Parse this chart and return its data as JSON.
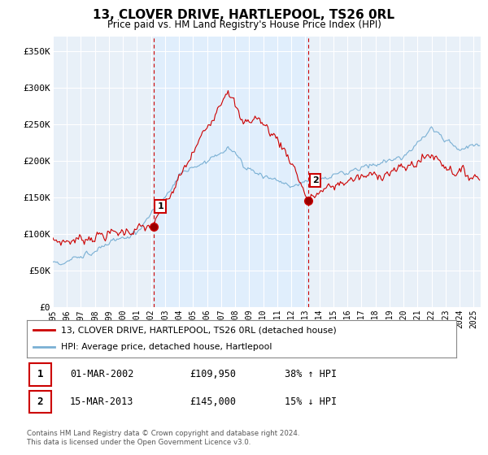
{
  "title": "13, CLOVER DRIVE, HARTLEPOOL, TS26 0RL",
  "subtitle": "Price paid vs. HM Land Registry's House Price Index (HPI)",
  "ylabel_ticks": [
    "£0",
    "£50K",
    "£100K",
    "£150K",
    "£200K",
    "£250K",
    "£300K",
    "£350K"
  ],
  "ytick_vals": [
    0,
    50000,
    100000,
    150000,
    200000,
    250000,
    300000,
    350000
  ],
  "ylim": [
    0,
    370000
  ],
  "xlim_start": 1995.0,
  "xlim_end": 2025.5,
  "marker1_x": 2002.17,
  "marker1_y": 109950,
  "marker2_x": 2013.21,
  "marker2_y": 145000,
  "vline1_x": 2002.17,
  "vline2_x": 2013.21,
  "legend_line1": "13, CLOVER DRIVE, HARTLEPOOL, TS26 0RL (detached house)",
  "legend_line2": "HPI: Average price, detached house, Hartlepool",
  "table_row1_date": "01-MAR-2002",
  "table_row1_price": "£109,950",
  "table_row1_hpi": "38% ↑ HPI",
  "table_row2_date": "15-MAR-2013",
  "table_row2_price": "£145,000",
  "table_row2_hpi": "15% ↓ HPI",
  "footer": "Contains HM Land Registry data © Crown copyright and database right 2024.\nThis data is licensed under the Open Government Licence v3.0.",
  "color_red": "#cc0000",
  "color_blue": "#7ab0d4",
  "color_vline": "#cc0000",
  "color_highlight": "#ddeeff",
  "background": "#e8f0f8"
}
